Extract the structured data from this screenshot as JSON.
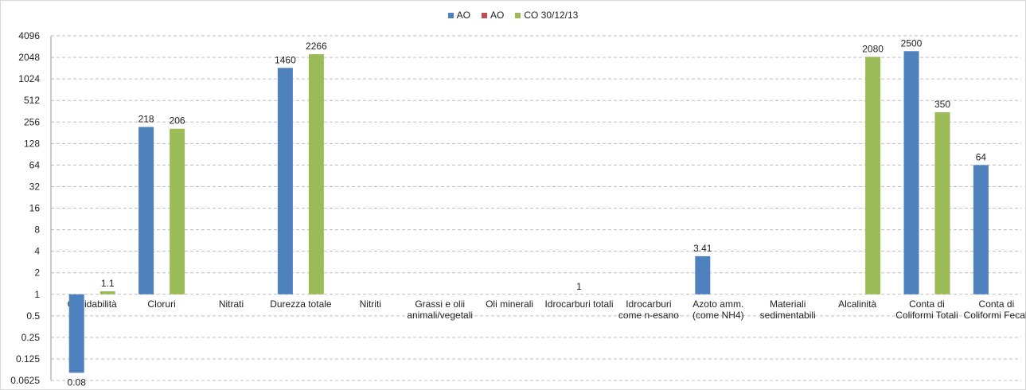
{
  "chart_data": {
    "type": "bar",
    "y_scale": "log2",
    "y_ticks": [
      "4096",
      "2048",
      "1024",
      "512",
      "256",
      "128",
      "64",
      "32",
      "16",
      "8",
      "4",
      "2",
      "1",
      "0.5",
      "0.25",
      "0.125",
      "0.0625"
    ],
    "ylim": [
      0.0625,
      4096
    ],
    "grid": "dashed horizontal",
    "legend_position": "top-center",
    "categories": [
      [
        "Ossidabilità"
      ],
      [
        "Cloruri"
      ],
      [
        "Nitrati"
      ],
      [
        "Durezza totale"
      ],
      [
        "Nitriti"
      ],
      [
        "Grassi e olii",
        "animali/vegetali"
      ],
      [
        "Oli minerali"
      ],
      [
        "Idrocarburi totali"
      ],
      [
        "Idrocarburi",
        "come n-esano"
      ],
      [
        "Azoto amm.",
        "(come NH4)"
      ],
      [
        "Materiali",
        "sedimentabili"
      ],
      [
        "Alcalinità"
      ],
      [
        "Conta di",
        "Coliformi Totali"
      ],
      [
        "Conta di",
        "Coliformi Fecali"
      ]
    ],
    "series": [
      {
        "name": "AO",
        "color": "#4F81BD",
        "values": [
          0.08,
          218,
          null,
          1460,
          null,
          null,
          null,
          null,
          null,
          3.41,
          null,
          null,
          2500,
          64
        ],
        "labels": [
          "0.08",
          "218",
          null,
          "1460",
          null,
          null,
          null,
          null,
          null,
          "3.41",
          null,
          null,
          "2500",
          "64"
        ]
      },
      {
        "name": "AO",
        "color": "#C0504D",
        "values": [
          null,
          null,
          null,
          null,
          null,
          null,
          null,
          1,
          null,
          null,
          null,
          null,
          null,
          null
        ],
        "labels": [
          null,
          null,
          null,
          null,
          null,
          null,
          null,
          "1",
          null,
          null,
          null,
          null,
          null,
          null
        ]
      },
      {
        "name": "CO 30/12/13",
        "color": "#9BBB59",
        "values": [
          1.1,
          206,
          null,
          2266,
          null,
          null,
          null,
          null,
          null,
          null,
          null,
          2080,
          350,
          null
        ],
        "labels": [
          "1.1",
          "206",
          null,
          "2266",
          null,
          null,
          null,
          null,
          null,
          null,
          null,
          "2080",
          "350",
          null
        ]
      }
    ]
  }
}
